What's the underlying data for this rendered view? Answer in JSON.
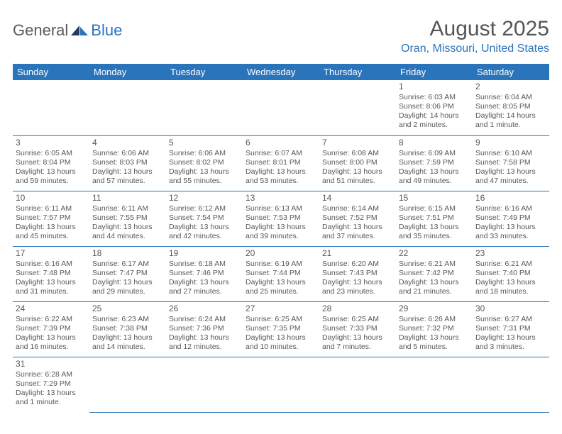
{
  "logo": {
    "general": "General",
    "blue": "Blue"
  },
  "title": "August 2025",
  "location": "Oran, Missouri, United States",
  "colors": {
    "accent": "#2a74bb",
    "text": "#585858",
    "bg": "#ffffff"
  },
  "weekdays": [
    "Sunday",
    "Monday",
    "Tuesday",
    "Wednesday",
    "Thursday",
    "Friday",
    "Saturday"
  ],
  "days": [
    {
      "n": 1,
      "sr": "6:03 AM",
      "ss": "8:06 PM",
      "dl": "14 hours and 2 minutes."
    },
    {
      "n": 2,
      "sr": "6:04 AM",
      "ss": "8:05 PM",
      "dl": "14 hours and 1 minute."
    },
    {
      "n": 3,
      "sr": "6:05 AM",
      "ss": "8:04 PM",
      "dl": "13 hours and 59 minutes."
    },
    {
      "n": 4,
      "sr": "6:06 AM",
      "ss": "8:03 PM",
      "dl": "13 hours and 57 minutes."
    },
    {
      "n": 5,
      "sr": "6:06 AM",
      "ss": "8:02 PM",
      "dl": "13 hours and 55 minutes."
    },
    {
      "n": 6,
      "sr": "6:07 AM",
      "ss": "8:01 PM",
      "dl": "13 hours and 53 minutes."
    },
    {
      "n": 7,
      "sr": "6:08 AM",
      "ss": "8:00 PM",
      "dl": "13 hours and 51 minutes."
    },
    {
      "n": 8,
      "sr": "6:09 AM",
      "ss": "7:59 PM",
      "dl": "13 hours and 49 minutes."
    },
    {
      "n": 9,
      "sr": "6:10 AM",
      "ss": "7:58 PM",
      "dl": "13 hours and 47 minutes."
    },
    {
      "n": 10,
      "sr": "6:11 AM",
      "ss": "7:57 PM",
      "dl": "13 hours and 45 minutes."
    },
    {
      "n": 11,
      "sr": "6:11 AM",
      "ss": "7:55 PM",
      "dl": "13 hours and 44 minutes."
    },
    {
      "n": 12,
      "sr": "6:12 AM",
      "ss": "7:54 PM",
      "dl": "13 hours and 42 minutes."
    },
    {
      "n": 13,
      "sr": "6:13 AM",
      "ss": "7:53 PM",
      "dl": "13 hours and 39 minutes."
    },
    {
      "n": 14,
      "sr": "6:14 AM",
      "ss": "7:52 PM",
      "dl": "13 hours and 37 minutes."
    },
    {
      "n": 15,
      "sr": "6:15 AM",
      "ss": "7:51 PM",
      "dl": "13 hours and 35 minutes."
    },
    {
      "n": 16,
      "sr": "6:16 AM",
      "ss": "7:49 PM",
      "dl": "13 hours and 33 minutes."
    },
    {
      "n": 17,
      "sr": "6:16 AM",
      "ss": "7:48 PM",
      "dl": "13 hours and 31 minutes."
    },
    {
      "n": 18,
      "sr": "6:17 AM",
      "ss": "7:47 PM",
      "dl": "13 hours and 29 minutes."
    },
    {
      "n": 19,
      "sr": "6:18 AM",
      "ss": "7:46 PM",
      "dl": "13 hours and 27 minutes."
    },
    {
      "n": 20,
      "sr": "6:19 AM",
      "ss": "7:44 PM",
      "dl": "13 hours and 25 minutes."
    },
    {
      "n": 21,
      "sr": "6:20 AM",
      "ss": "7:43 PM",
      "dl": "13 hours and 23 minutes."
    },
    {
      "n": 22,
      "sr": "6:21 AM",
      "ss": "7:42 PM",
      "dl": "13 hours and 21 minutes."
    },
    {
      "n": 23,
      "sr": "6:21 AM",
      "ss": "7:40 PM",
      "dl": "13 hours and 18 minutes."
    },
    {
      "n": 24,
      "sr": "6:22 AM",
      "ss": "7:39 PM",
      "dl": "13 hours and 16 minutes."
    },
    {
      "n": 25,
      "sr": "6:23 AM",
      "ss": "7:38 PM",
      "dl": "13 hours and 14 minutes."
    },
    {
      "n": 26,
      "sr": "6:24 AM",
      "ss": "7:36 PM",
      "dl": "13 hours and 12 minutes."
    },
    {
      "n": 27,
      "sr": "6:25 AM",
      "ss": "7:35 PM",
      "dl": "13 hours and 10 minutes."
    },
    {
      "n": 28,
      "sr": "6:25 AM",
      "ss": "7:33 PM",
      "dl": "13 hours and 7 minutes."
    },
    {
      "n": 29,
      "sr": "6:26 AM",
      "ss": "7:32 PM",
      "dl": "13 hours and 5 minutes."
    },
    {
      "n": 30,
      "sr": "6:27 AM",
      "ss": "7:31 PM",
      "dl": "13 hours and 3 minutes."
    },
    {
      "n": 31,
      "sr": "6:28 AM",
      "ss": "7:29 PM",
      "dl": "13 hours and 1 minute."
    }
  ],
  "labels": {
    "sunrise": "Sunrise:",
    "sunset": "Sunset:",
    "daylight": "Daylight:"
  },
  "layout": {
    "startWeekday": 5,
    "cols": 7
  }
}
